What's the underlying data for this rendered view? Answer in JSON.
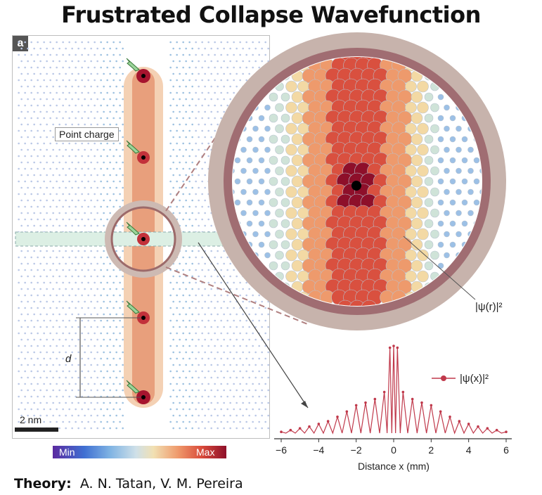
{
  "title": "Frustrated Collapse Wavefunction",
  "panel": {
    "letter": "a",
    "callout": "Point charge",
    "d_label": "d",
    "scale": "2 nm"
  },
  "colorbar": {
    "min": "Min",
    "max": "Max"
  },
  "zoom": {
    "label": "|ψ(r)|²"
  },
  "chart_data": {
    "type": "line",
    "xlabel": "Distance x (mm)",
    "xlim": [
      -6,
      6
    ],
    "xticks": [
      "−6",
      "−4",
      "−2",
      "0",
      "2",
      "4",
      "6"
    ],
    "series": [
      {
        "name": "|ψ(x)|²",
        "color": "#c0394b",
        "x": [
          -6.0,
          -5.5,
          -5.0,
          -4.5,
          -4.0,
          -3.5,
          -3.0,
          -2.5,
          -2.0,
          -1.5,
          -1.0,
          -0.5,
          -0.2,
          0.0,
          0.2,
          0.5,
          1.0,
          1.5,
          2.0,
          2.5,
          3.0,
          3.5,
          4.0,
          4.5,
          5.0,
          5.5,
          6.0
        ],
        "peaks": [
          0.03,
          0.05,
          0.07,
          0.09,
          0.12,
          0.15,
          0.2,
          0.26,
          0.33,
          0.36,
          0.4,
          0.48,
          0.98,
          1.0,
          0.98,
          0.48,
          0.4,
          0.36,
          0.33,
          0.26,
          0.2,
          0.15,
          0.12,
          0.09,
          0.07,
          0.05,
          0.03
        ]
      }
    ]
  },
  "credit": {
    "label": "Theory:",
    "names": "A. N. Tatan, V. M. Pereira"
  }
}
